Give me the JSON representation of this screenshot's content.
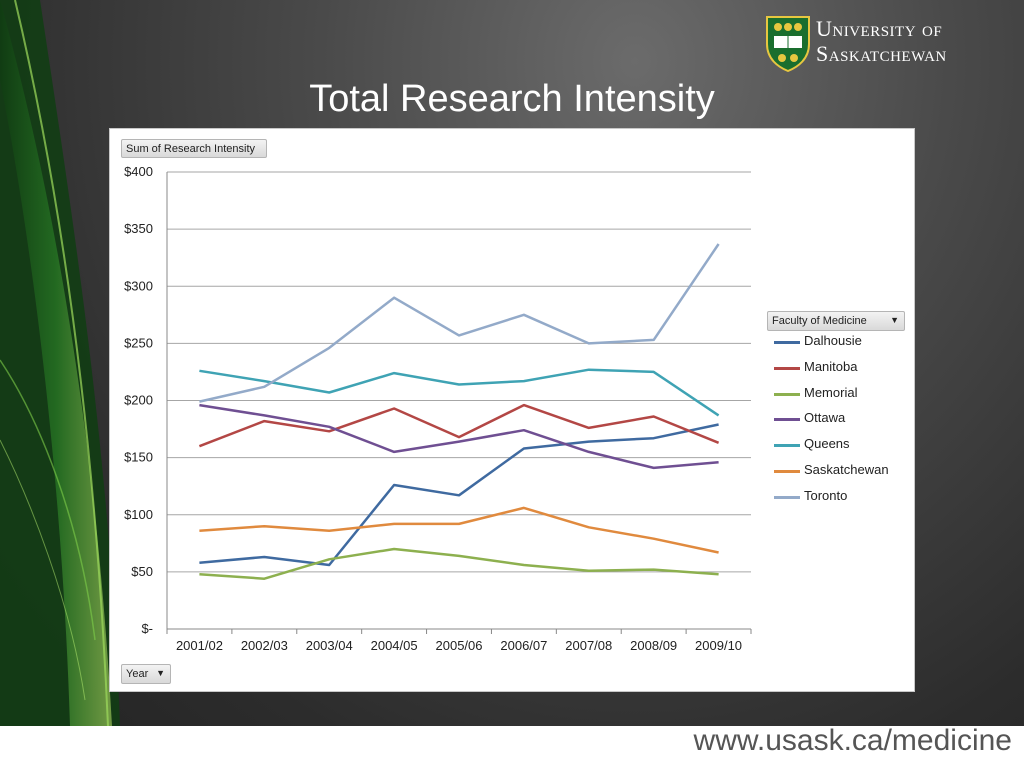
{
  "slide": {
    "title": "Total Research Intensity",
    "footer_url": "www.usask.ca/medicine",
    "logo_line1": "University of",
    "logo_line2": "Saskatchewan"
  },
  "pivot": {
    "value_field": "Sum of Research Intensity",
    "axis_field": "Year",
    "legend_field": "Faculty of Medicine"
  },
  "chart_data": {
    "type": "line",
    "x": [
      "2001/02",
      "2002/03",
      "2003/04",
      "2004/05",
      "2005/06",
      "2006/07",
      "2007/08",
      "2008/09",
      "2009/10"
    ],
    "ylim": [
      0,
      400
    ],
    "yticks": [
      0,
      50,
      100,
      150,
      200,
      250,
      300,
      350,
      400
    ],
    "ytick_labels": [
      "$-",
      "$50",
      "$100",
      "$150",
      "$200",
      "$250",
      "$300",
      "$350",
      "$400"
    ],
    "grid": true,
    "legend_position": "right",
    "series": [
      {
        "name": "Dalhousie",
        "color": "#3f6aa0",
        "values": [
          58,
          63,
          56,
          126,
          117,
          158,
          164,
          167,
          179
        ]
      },
      {
        "name": "Manitoba",
        "color": "#b34745",
        "values": [
          160,
          182,
          173,
          193,
          168,
          196,
          176,
          186,
          163
        ]
      },
      {
        "name": "Memorial",
        "color": "#8db04f",
        "values": [
          48,
          44,
          61,
          70,
          64,
          56,
          51,
          52,
          48
        ]
      },
      {
        "name": "Ottawa",
        "color": "#6f4f92",
        "values": [
          196,
          187,
          177,
          155,
          164,
          174,
          155,
          141,
          146
        ]
      },
      {
        "name": "Queens",
        "color": "#3fa3b4",
        "values": [
          226,
          217,
          207,
          224,
          214,
          217,
          227,
          225,
          187
        ]
      },
      {
        "name": "Saskatchewan",
        "color": "#e08a3e",
        "values": [
          86,
          90,
          86,
          92,
          92,
          106,
          89,
          79,
          67
        ]
      },
      {
        "name": "Toronto",
        "color": "#93aac9",
        "values": [
          199,
          212,
          246,
          290,
          257,
          275,
          250,
          253,
          337
        ]
      }
    ]
  }
}
